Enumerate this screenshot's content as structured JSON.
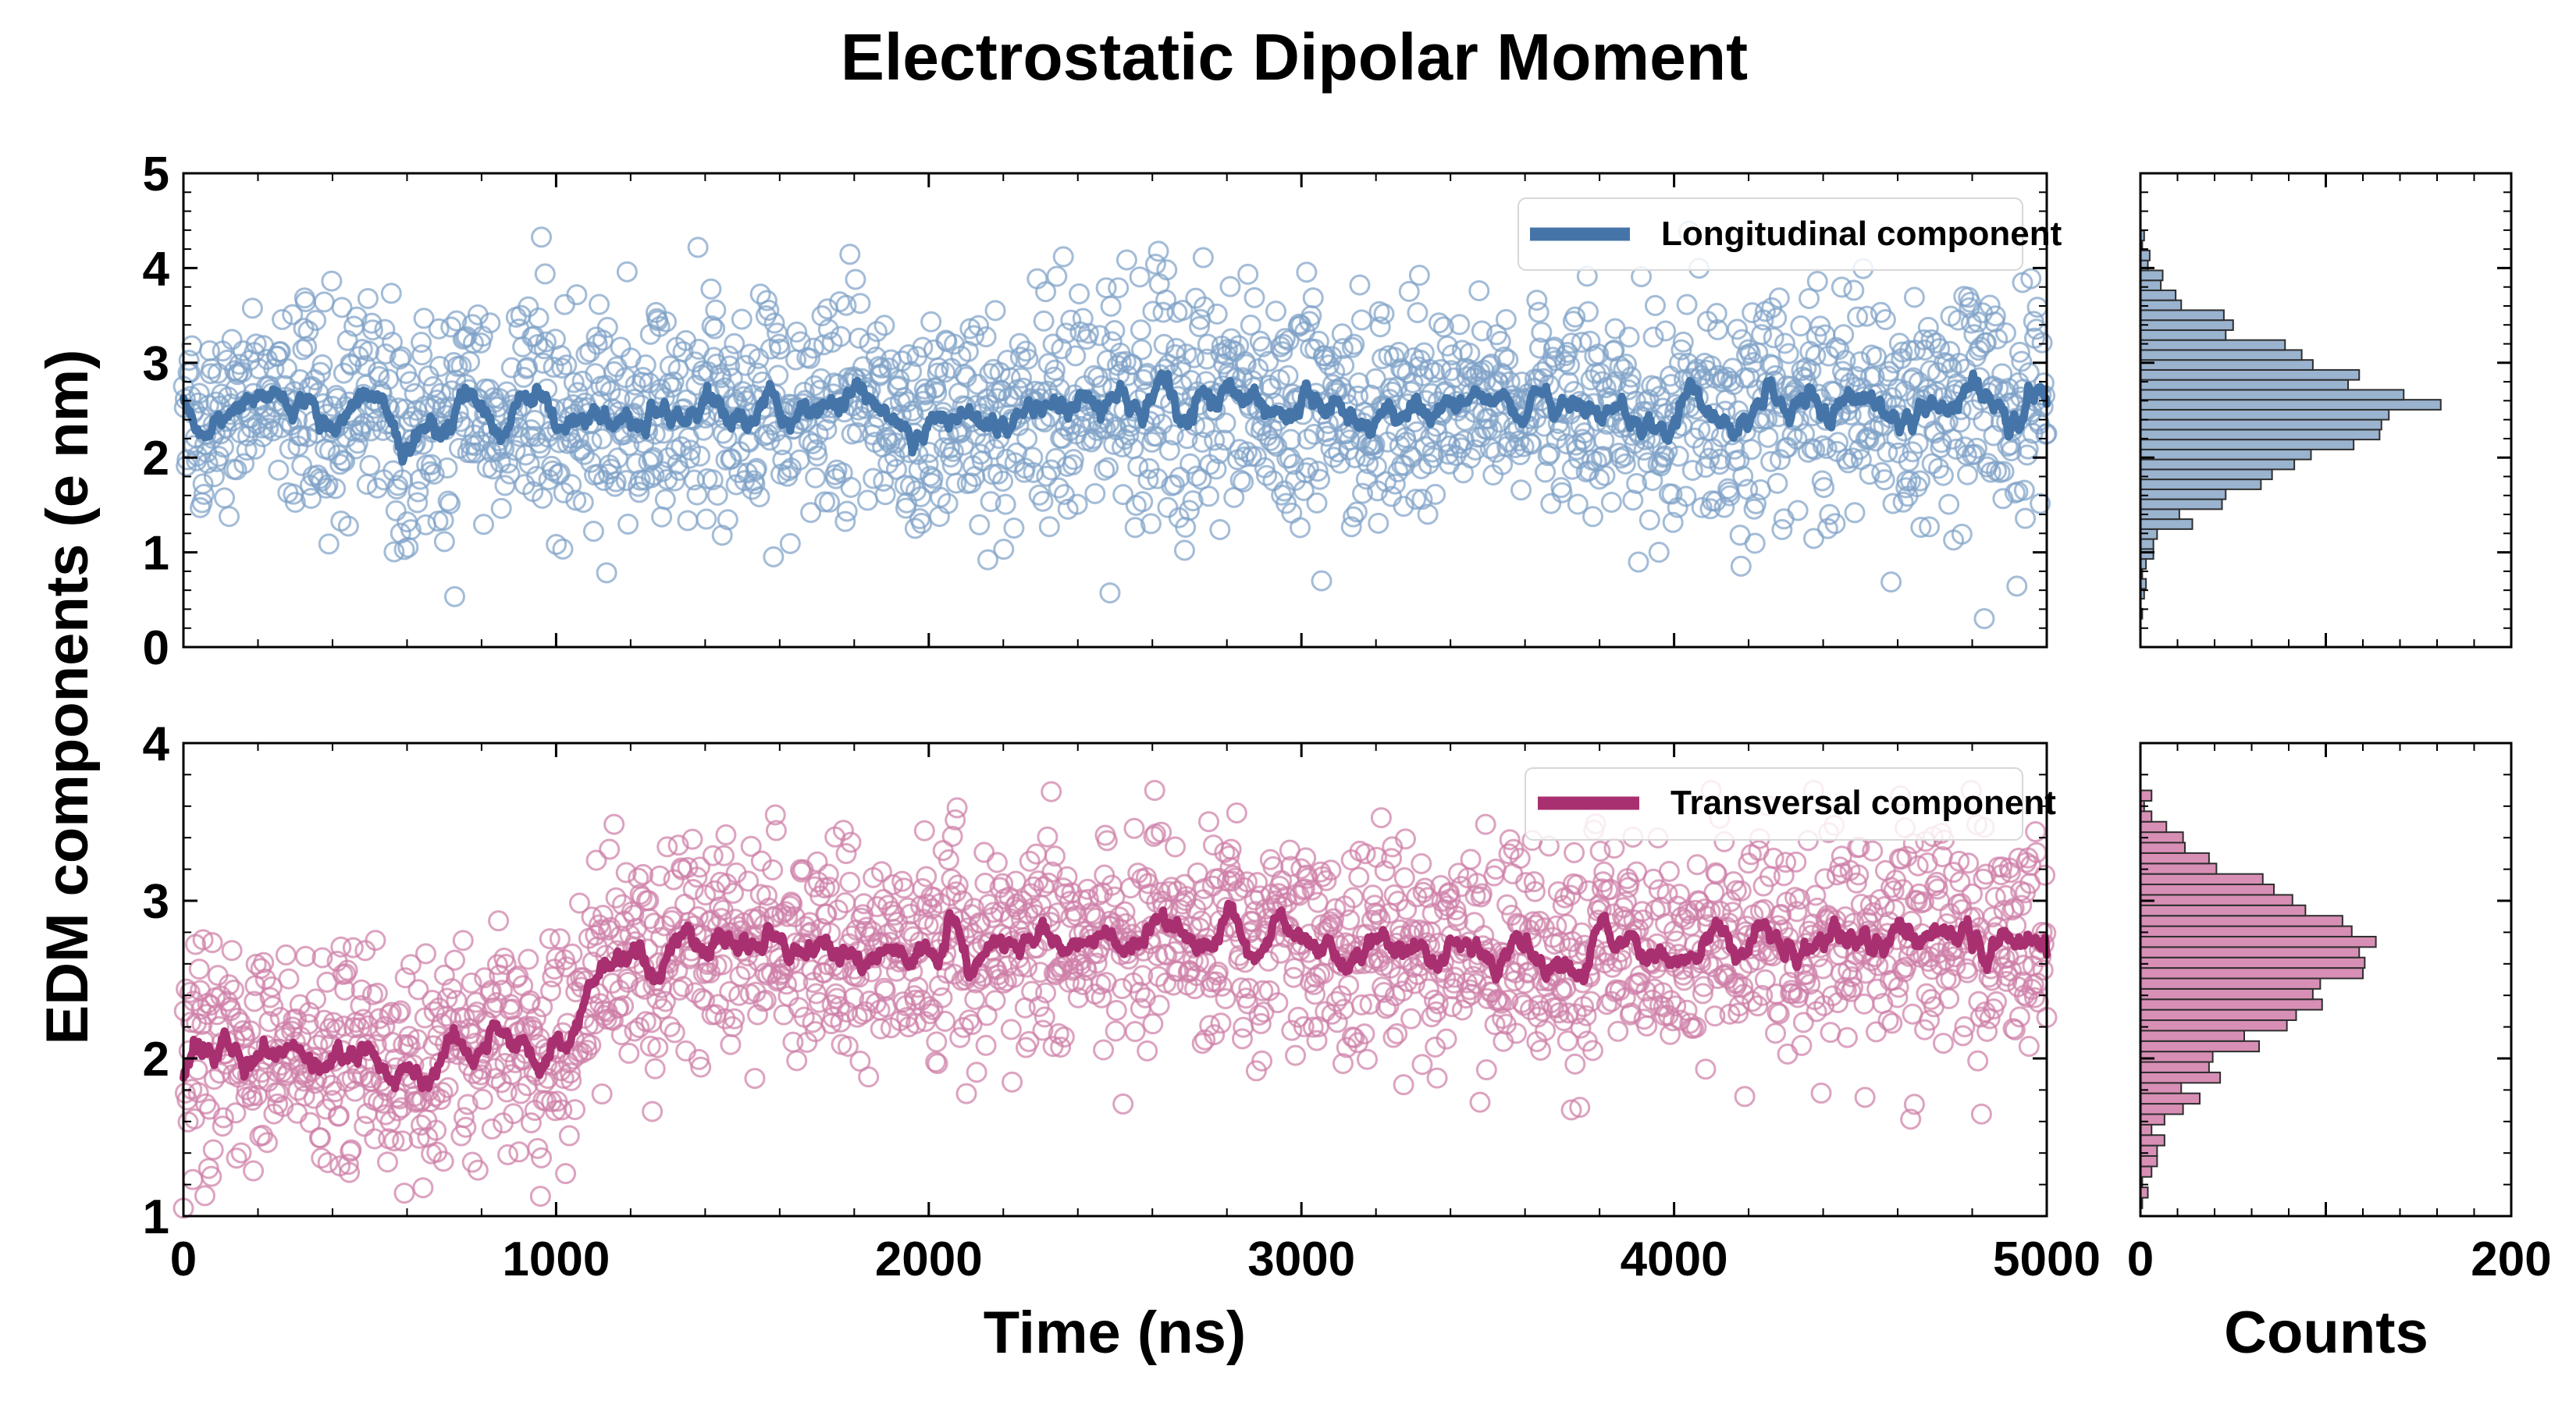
{
  "chart_data": [
    {
      "type": "scatter",
      "panel": "top-main",
      "title": "Electrostatic Dipolar Moment",
      "xlabel": "",
      "ylabel": "EDM components (e nm)",
      "xlim": [
        0,
        5000
      ],
      "ylim": [
        0,
        5
      ],
      "yticks": [
        0,
        1,
        2,
        3,
        4,
        5
      ],
      "legend": {
        "label": "Longitudinal component",
        "placement": "top-right"
      },
      "series": {
        "name": "Longitudinal component",
        "color": "#4575a8",
        "scatter_color": "#7fa2c7",
        "samples": 2000,
        "mean": 2.5,
        "std": 0.62,
        "running_mean_window": 20,
        "min": 0.3,
        "max": 4.5
      }
    },
    {
      "type": "scatter",
      "panel": "bottom-main",
      "xlabel": "Time (ns)",
      "ylabel": "EDM components (e nm)",
      "xlim": [
        0,
        5000
      ],
      "ylim": [
        1,
        4
      ],
      "xticks": [
        0,
        1000,
        2000,
        3000,
        4000,
        5000
      ],
      "yticks": [
        1,
        2,
        3,
        4
      ],
      "legend": {
        "label": "Transversal component",
        "placement": "top-right"
      },
      "series": {
        "name": "Transversal component",
        "color": "#a83070",
        "scatter_color": "#cf7fa7",
        "samples": 2000,
        "segments": [
          {
            "start": 0,
            "end": 1000,
            "mean": 2.0
          },
          {
            "start": 1000,
            "end": 1200,
            "mean": 2.72
          },
          {
            "start": 1200,
            "end": 5000,
            "mean": 2.72
          }
        ],
        "std": 0.35,
        "running_mean_window": 20,
        "min": 1.05,
        "max": 3.7
      }
    },
    {
      "type": "bar",
      "panel": "top-histogram",
      "orientation": "horizontal",
      "xlabel": "",
      "ylim": [
        0,
        5
      ],
      "xlim": [
        0,
        200
      ],
      "bin_count": 40,
      "bin_range": [
        0.3,
        4.5
      ],
      "color": "#9ab3cf"
    },
    {
      "type": "bar",
      "panel": "bottom-histogram",
      "orientation": "horizontal",
      "xlabel": "Counts",
      "ylim": [
        1,
        4
      ],
      "xlim": [
        0,
        200
      ],
      "xticks": [
        0,
        200
      ],
      "bin_count": 40,
      "bin_range": [
        1.05,
        3.7
      ],
      "color": "#d88fb5"
    }
  ],
  "colors": {
    "axis": "#000000",
    "background": "#ffffff"
  }
}
